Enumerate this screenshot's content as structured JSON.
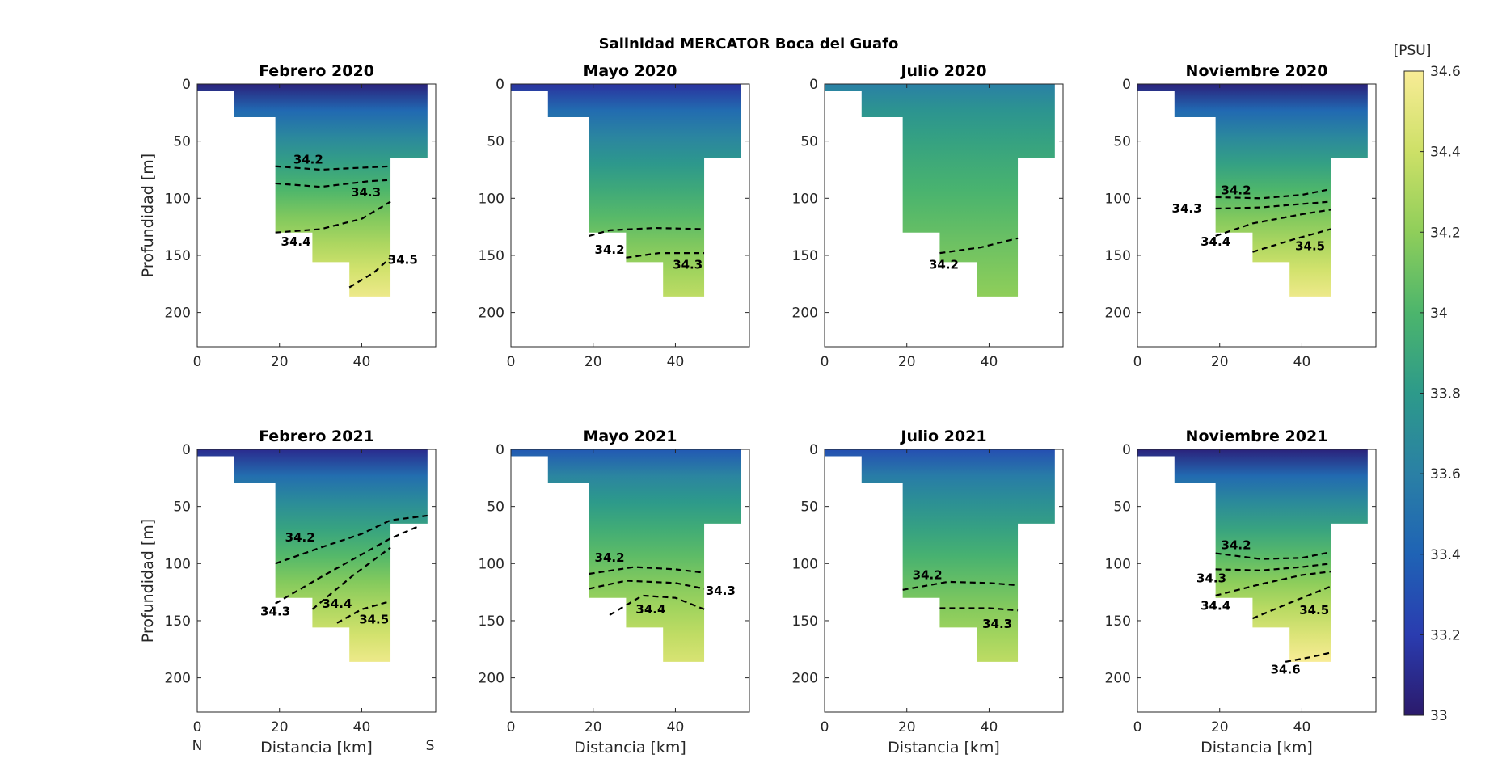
{
  "figure": {
    "title": "Salinidad MERCATOR Boca del Guafo",
    "colorbar": {
      "unit_label": "[PSU]",
      "ticks": [
        "34.6",
        "34.4",
        "34.2",
        "34",
        "33.8",
        "33.6",
        "33.4",
        "33.2",
        "33"
      ],
      "range": [
        33,
        34.6
      ],
      "colormap": [
        "#2b1a6b",
        "#2a3cb0",
        "#1f63b5",
        "#2a80a5",
        "#2d9a8a",
        "#4cb56c",
        "#8fce5a",
        "#cde067",
        "#f8ec96"
      ]
    },
    "north_label": "N",
    "south_label": "S"
  },
  "chart_data": [
    {
      "type": "heatmap",
      "title": "Febrero 2020",
      "xlabel": "",
      "ylabel": "Profundidad [m]",
      "xlim": [
        0,
        58
      ],
      "ylim": [
        230,
        0
      ],
      "x_ticks": [
        "0",
        "20",
        "40"
      ],
      "y_ticks": [
        "0",
        "50",
        "100",
        "150",
        "200"
      ],
      "salinity_surface": 33.05,
      "salinity_bottom": 34.55,
      "contour_labels": [
        "34.2",
        "34.3",
        "34.4",
        "34.5"
      ]
    },
    {
      "type": "heatmap",
      "title": "Mayo 2020",
      "xlabel": "",
      "ylabel": "",
      "xlim": [
        0,
        58
      ],
      "ylim": [
        230,
        0
      ],
      "x_ticks": [
        "0",
        "20",
        "40"
      ],
      "y_ticks": [
        "0",
        "50",
        "100",
        "150",
        "200"
      ],
      "salinity_surface": 33.15,
      "salinity_bottom": 34.35,
      "contour_labels": [
        "34.2",
        "34.3"
      ]
    },
    {
      "type": "heatmap",
      "title": "Julio 2020",
      "xlabel": "",
      "ylabel": "",
      "xlim": [
        0,
        58
      ],
      "ylim": [
        230,
        0
      ],
      "x_ticks": [
        "0",
        "20",
        "40"
      ],
      "y_ticks": [
        "0",
        "50",
        "100",
        "150",
        "200"
      ],
      "salinity_surface": 33.6,
      "salinity_bottom": 34.2,
      "contour_labels": [
        "34.2"
      ]
    },
    {
      "type": "heatmap",
      "title": "Noviembre 2020",
      "xlabel": "",
      "ylabel": "",
      "xlim": [
        0,
        58
      ],
      "ylim": [
        230,
        0
      ],
      "x_ticks": [
        "0",
        "20",
        "40"
      ],
      "y_ticks": [
        "0",
        "50",
        "100",
        "150",
        "200"
      ],
      "salinity_surface": 33.05,
      "salinity_bottom": 34.55,
      "contour_labels": [
        "34.2",
        "34.3",
        "34.4",
        "34.5"
      ]
    },
    {
      "type": "heatmap",
      "title": "Febrero 2021",
      "xlabel": "Distancia [km]",
      "ylabel": "Profundidad [m]",
      "xlim": [
        0,
        58
      ],
      "ylim": [
        230,
        0
      ],
      "x_ticks": [
        "0",
        "20",
        "40"
      ],
      "y_ticks": [
        "0",
        "50",
        "100",
        "150",
        "200"
      ],
      "salinity_surface": 33.1,
      "salinity_bottom": 34.55,
      "contour_labels": [
        "34.2",
        "34.3",
        "34.4",
        "34.5"
      ]
    },
    {
      "type": "heatmap",
      "title": "Mayo 2021",
      "xlabel": "Distancia [km]",
      "ylabel": "",
      "xlim": [
        0,
        58
      ],
      "ylim": [
        230,
        0
      ],
      "x_ticks": [
        "0",
        "20",
        "40"
      ],
      "y_ticks": [
        "0",
        "50",
        "100",
        "150",
        "200"
      ],
      "salinity_surface": 33.35,
      "salinity_bottom": 34.45,
      "contour_labels": [
        "34.2",
        "34.3",
        "34.4"
      ]
    },
    {
      "type": "heatmap",
      "title": "Julio 2021",
      "xlabel": "Distancia [km]",
      "ylabel": "",
      "xlim": [
        0,
        58
      ],
      "ylim": [
        230,
        0
      ],
      "x_ticks": [
        "0",
        "20",
        "40"
      ],
      "y_ticks": [
        "0",
        "50",
        "100",
        "150",
        "200"
      ],
      "salinity_surface": 33.3,
      "salinity_bottom": 34.35,
      "contour_labels": [
        "34.2",
        "34.3"
      ]
    },
    {
      "type": "heatmap",
      "title": "Noviembre 2021",
      "xlabel": "Distancia [km]",
      "ylabel": "",
      "xlim": [
        0,
        58
      ],
      "ylim": [
        230,
        0
      ],
      "x_ticks": [
        "0",
        "20",
        "40"
      ],
      "y_ticks": [
        "0",
        "50",
        "100",
        "150",
        "200"
      ],
      "salinity_surface": 33.05,
      "salinity_bottom": 34.6,
      "contour_labels": [
        "34.2",
        "34.3",
        "34.4",
        "34.5",
        "34.6"
      ]
    }
  ]
}
